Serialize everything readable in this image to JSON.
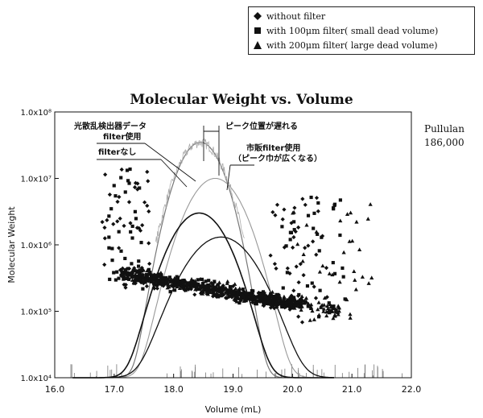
{
  "legend": {
    "items": [
      {
        "marker": "diamond",
        "label": "without filter"
      },
      {
        "marker": "square",
        "label": "with 100μm filter( small dead volume)"
      },
      {
        "marker": "triangle",
        "label": "with 200μm filter( large dead volume)"
      }
    ]
  },
  "side_note": {
    "line1": "Pullulan",
    "line2": "186,000"
  },
  "annotations": {
    "detector": "光散乱検出器データ",
    "filter_used": "filter使用",
    "filter_none": "filterなし",
    "peak_delay": "ピーク位置が遅れる",
    "commercial_line1": "市販filter使用",
    "commercial_line2": "（ピーク巾が広くなる）"
  },
  "chart_data": {
    "type": "scatter",
    "title": "Molecular Weight vs. Volume",
    "xlabel": "Volume (mL)",
    "ylabel": "Molecular Weight",
    "xlim": [
      16.0,
      22.0
    ],
    "ylim": [
      10000,
      100000000
    ],
    "y_scale": "log",
    "x_ticks": [
      "16.0",
      "17.0",
      "18.0",
      "19.0",
      "20.0",
      "21.0",
      "22.0"
    ],
    "y_ticks": [
      "1.0x10⁴",
      "1.0x10⁵",
      "1.0x10⁶",
      "1.0x10⁷",
      "1.0x10⁸"
    ],
    "grid": false,
    "legend_position": "top-right",
    "series": [
      {
        "name": "without filter",
        "marker": "diamond",
        "trend": [
          [
            17.1,
            400000
          ],
          [
            17.5,
            320000
          ],
          [
            18.0,
            260000
          ],
          [
            18.5,
            220000
          ],
          [
            19.0,
            180000
          ],
          [
            19.5,
            150000
          ],
          [
            20.0,
            120000
          ]
        ],
        "scatter_ranges": [
          [
            16.8,
            17.6
          ],
          [
            19.6,
            20.6
          ]
        ]
      },
      {
        "name": "with 100μm filter( small dead volume)",
        "marker": "square",
        "trend": [
          [
            17.2,
            380000
          ],
          [
            17.8,
            300000
          ],
          [
            18.4,
            240000
          ],
          [
            19.0,
            190000
          ],
          [
            19.6,
            150000
          ],
          [
            20.2,
            120000
          ]
        ],
        "scatter_ranges": [
          [
            16.9,
            17.5
          ],
          [
            19.8,
            20.9
          ]
        ]
      },
      {
        "name": "with 200μm filter( large dead volume)",
        "marker": "triangle",
        "trend": [
          [
            17.3,
            350000
          ],
          [
            18.0,
            280000
          ],
          [
            18.8,
            210000
          ],
          [
            19.5,
            160000
          ],
          [
            20.3,
            120000
          ],
          [
            20.8,
            100000
          ]
        ],
        "scatter_ranges": [
          [
            20.0,
            21.4
          ]
        ]
      }
    ],
    "detector_curves": [
      {
        "center": 18.45,
        "sigma": 0.27,
        "peak": 35000000
      },
      {
        "center": 18.7,
        "sigma": 0.33,
        "peak": 10000000
      },
      {
        "center": 18.43,
        "sigma": 0.34,
        "peak": 3000000
      },
      {
        "center": 18.8,
        "sigma": 0.42,
        "peak": 1300000
      }
    ]
  }
}
